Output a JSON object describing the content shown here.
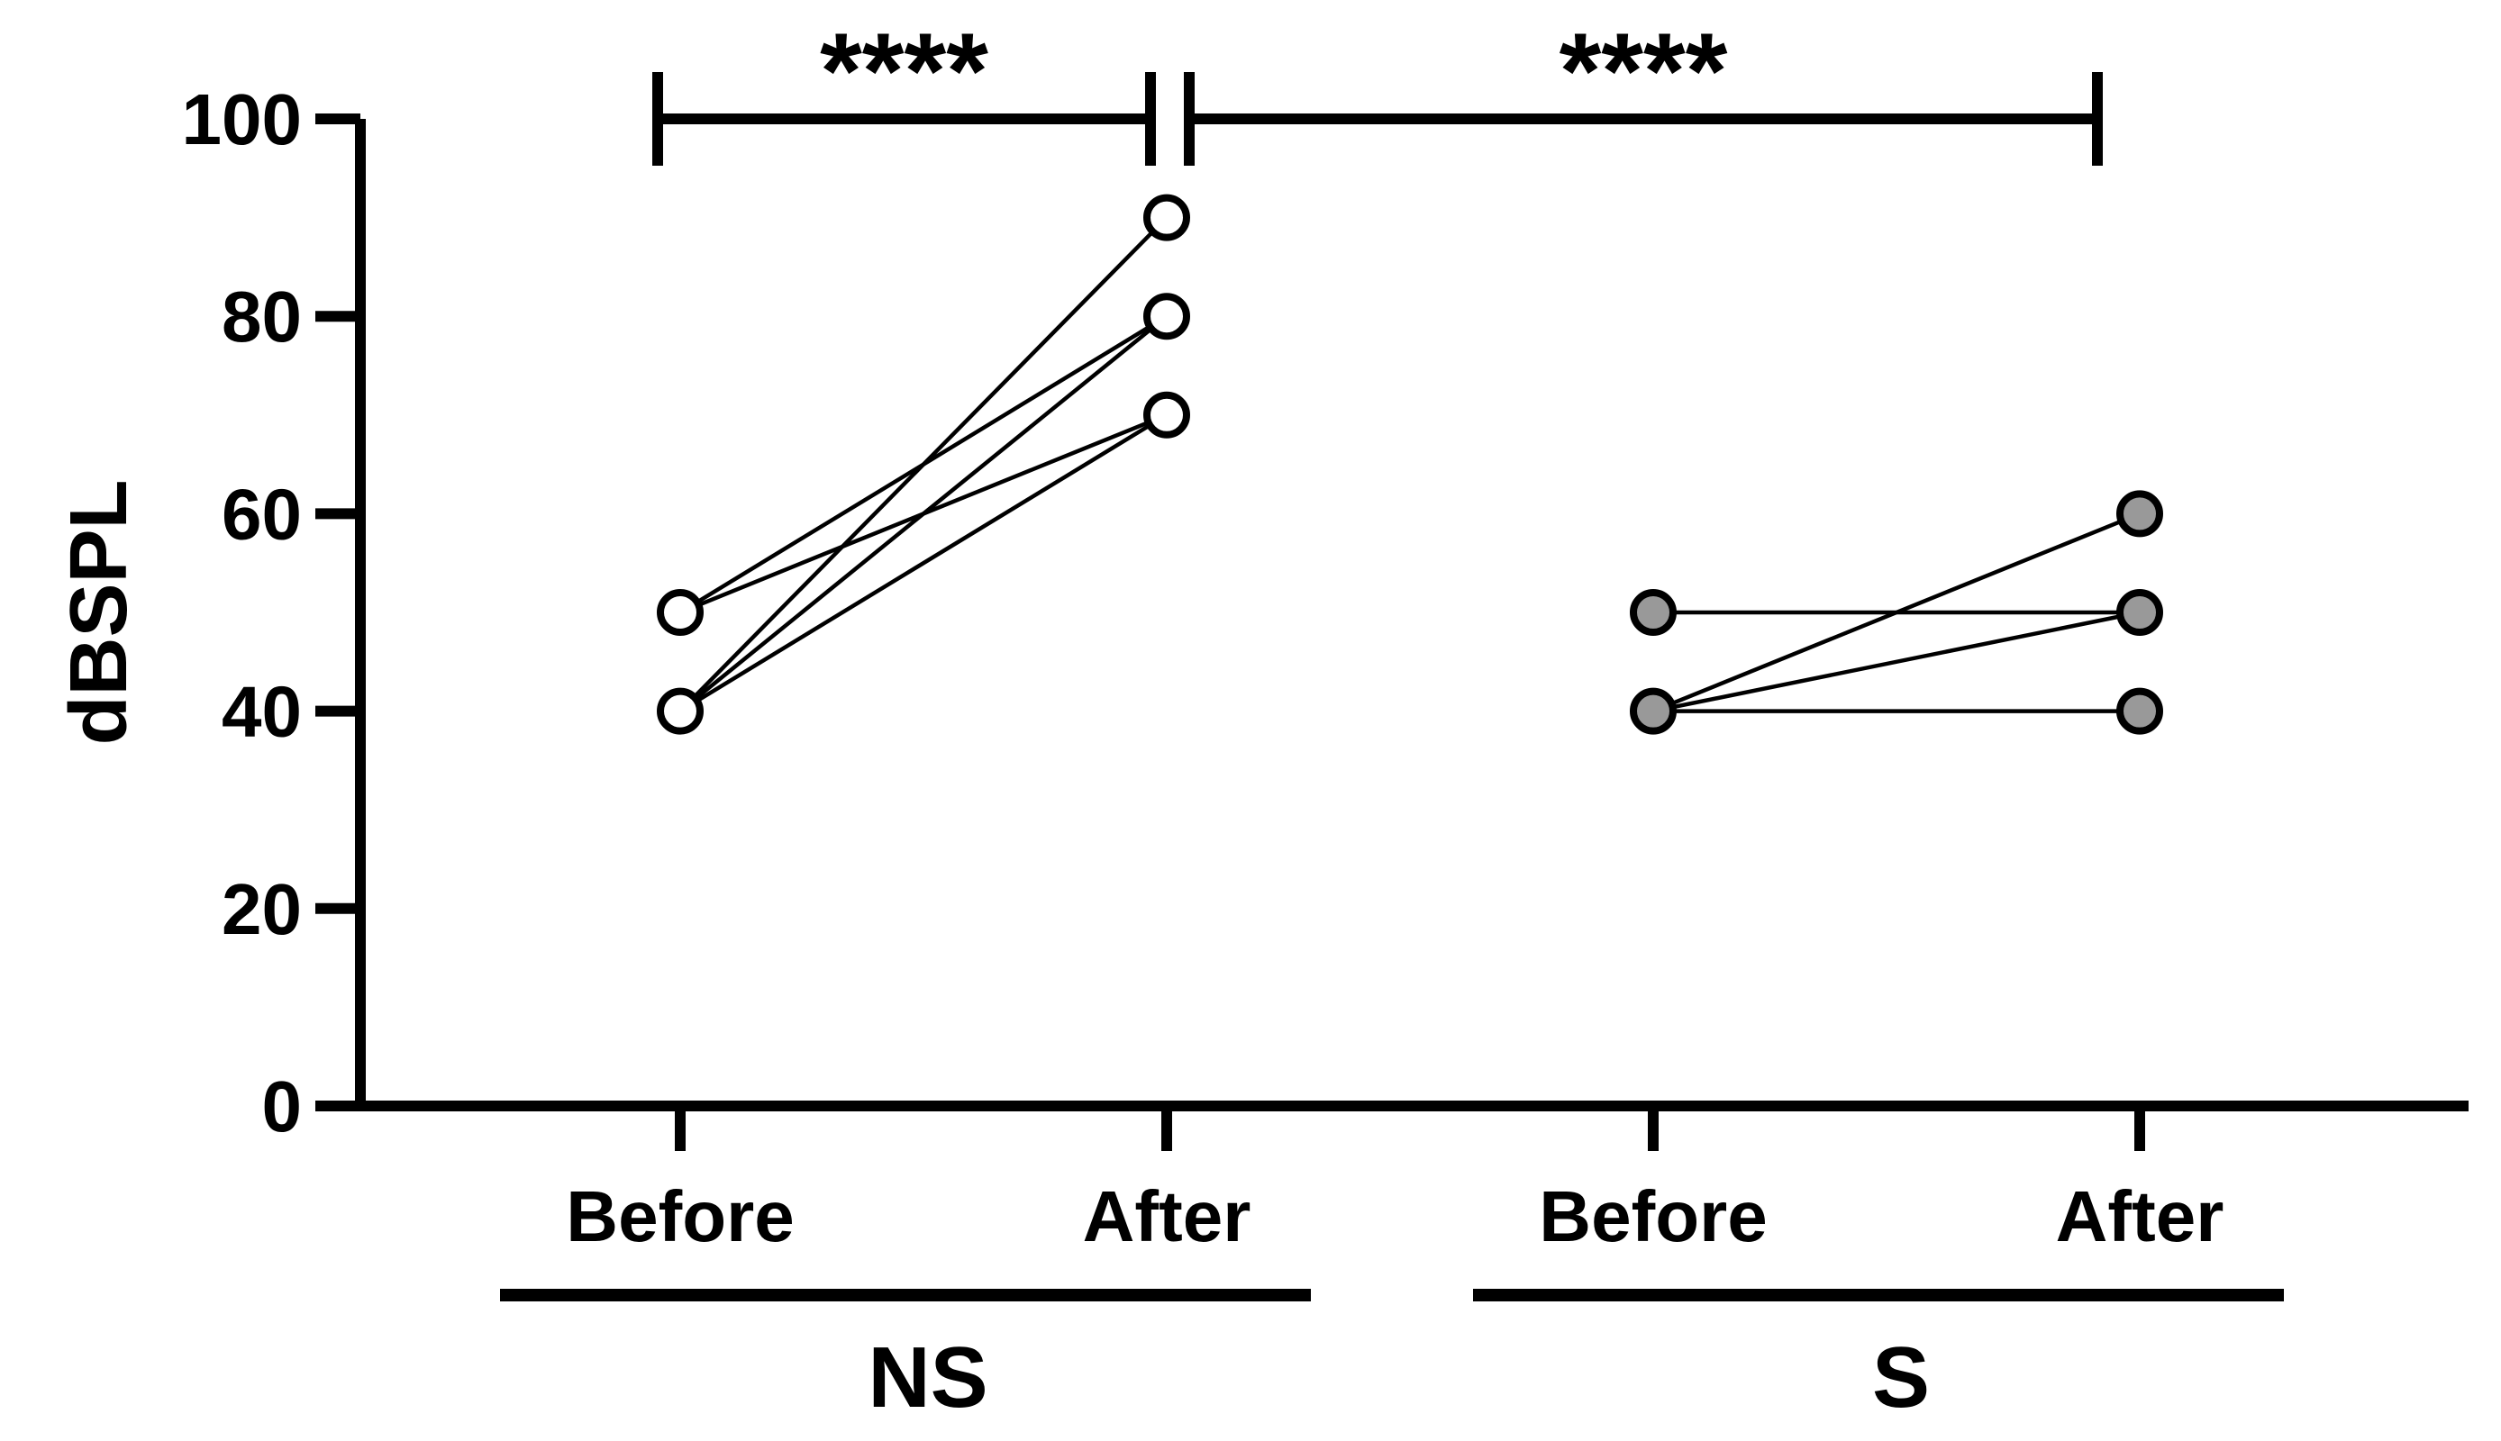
{
  "chart_data": {
    "type": "scatter",
    "ylabel": "dBSPL",
    "ylim": [
      0,
      100
    ],
    "yticks": [
      "0",
      "20",
      "40",
      "60",
      "80",
      "100"
    ],
    "categories": [
      "Before",
      "After",
      "Before",
      "After"
    ],
    "groups": [
      {
        "name": "NS",
        "marker": "open-circle",
        "pairs": [
          [
            50,
            80
          ],
          [
            50,
            70
          ],
          [
            40,
            90
          ],
          [
            40,
            80
          ],
          [
            40,
            70
          ]
        ]
      },
      {
        "name": "S",
        "marker": "filled-circle",
        "pairs": [
          [
            50,
            50
          ],
          [
            40,
            60
          ],
          [
            40,
            50
          ],
          [
            40,
            40
          ]
        ]
      }
    ],
    "comparisons": [
      "****",
      "****"
    ],
    "colors": {
      "axis": "#000000",
      "ns_fill": "#ffffff",
      "s_fill": "#999999"
    }
  }
}
